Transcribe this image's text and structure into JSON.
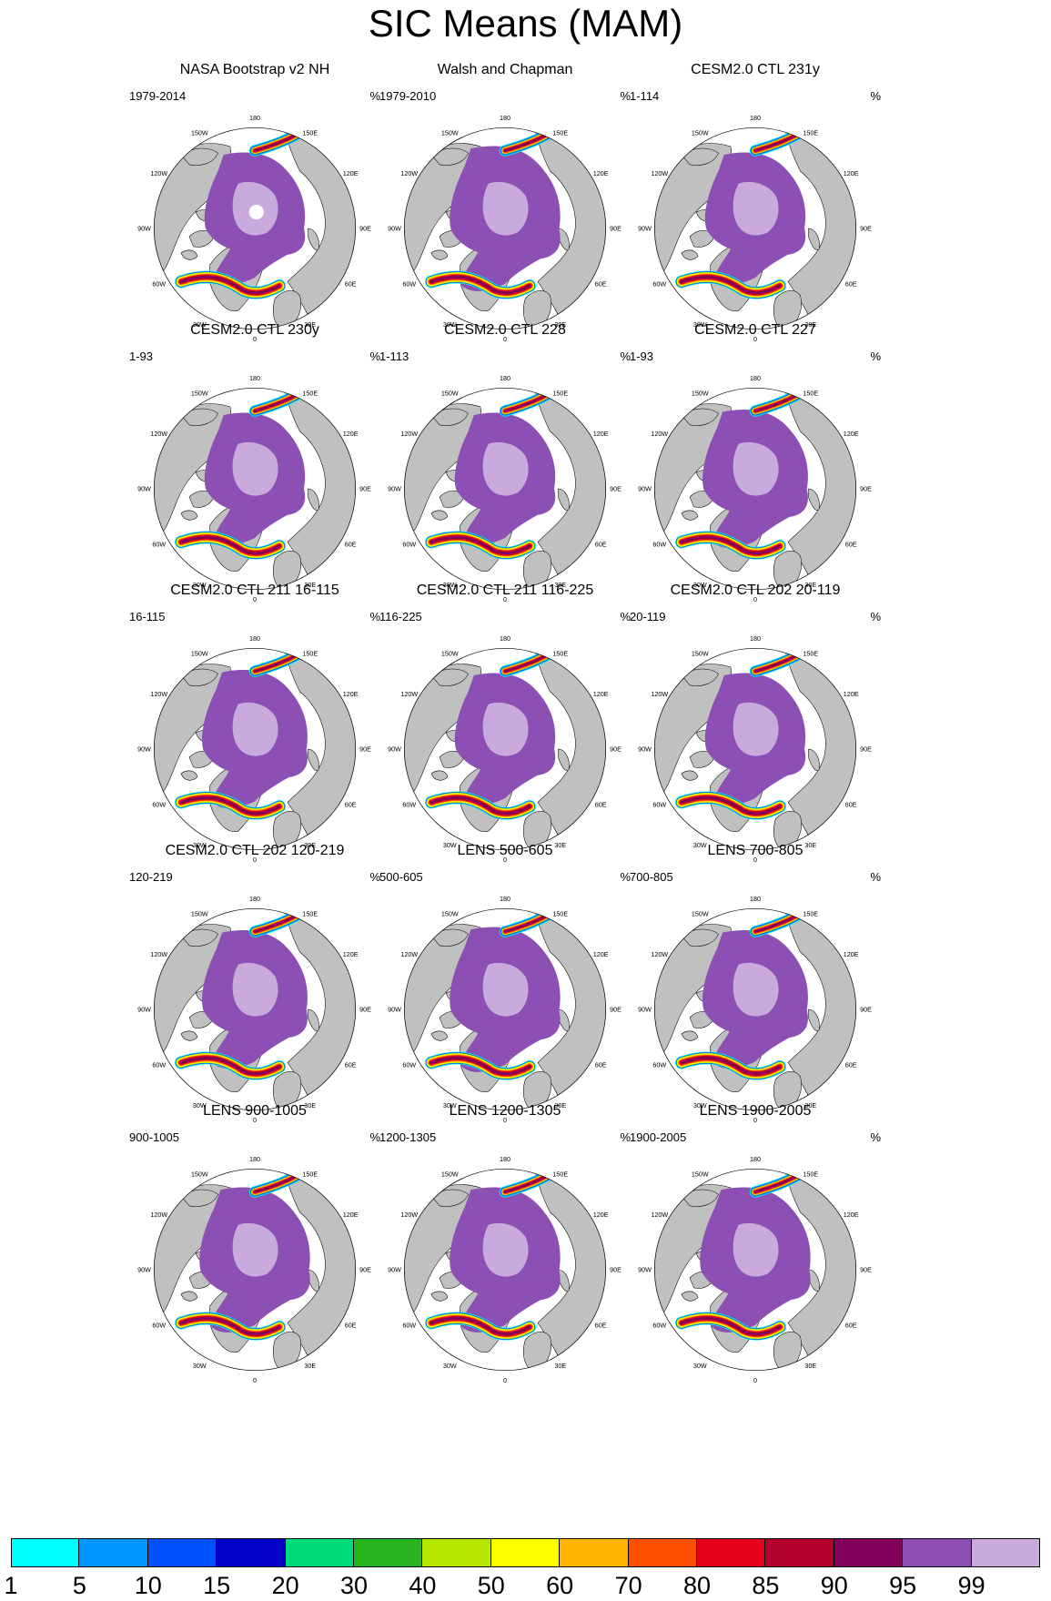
{
  "title": "SIC Means (MAM)",
  "unit": "%",
  "longitude_labels": [
    "180",
    "150E",
    "120E",
    "90E",
    "60E",
    "30E",
    "0",
    "30W",
    "60W",
    "90W",
    "120W",
    "150W"
  ],
  "panels": [
    {
      "title": "NASA Bootstrap v2 NH",
      "period": "1979-2014",
      "pole_hole": true,
      "extent": 1.0
    },
    {
      "title": "Walsh and Chapman",
      "period": "1979-2010",
      "pole_hole": false,
      "extent": 1.1
    },
    {
      "title": "CESM2.0 CTL 231y",
      "period": "1-114",
      "pole_hole": false,
      "extent": 1.0
    },
    {
      "title": "CESM2.0 CTL 230y",
      "period": "1-93",
      "pole_hole": false,
      "extent": 1.0
    },
    {
      "title": "CESM2.0 CTL 228",
      "period": "1-113",
      "pole_hole": false,
      "extent": 1.0
    },
    {
      "title": "CESM2.0 CTL 227",
      "period": "1-93",
      "pole_hole": false,
      "extent": 1.05
    },
    {
      "title": "CESM2.0 CTL 211 16-115",
      "period": "16-115",
      "pole_hole": false,
      "extent": 1.05
    },
    {
      "title": "CESM2.0 CTL 211 116-225",
      "period": "116-225",
      "pole_hole": false,
      "extent": 1.0
    },
    {
      "title": "CESM2.0 CTL 202 20-119",
      "period": "20-119",
      "pole_hole": false,
      "extent": 1.0
    },
    {
      "title": "CESM2.0 CTL 202 120-219",
      "period": "120-219",
      "pole_hole": false,
      "extent": 1.05
    },
    {
      "title": "LENS 500-605",
      "period": "500-605",
      "pole_hole": false,
      "extent": 1.1
    },
    {
      "title": "LENS 700-805",
      "period": "700-805",
      "pole_hole": false,
      "extent": 1.05
    },
    {
      "title": "LENS 900-1005",
      "period": "900-1005",
      "pole_hole": false,
      "extent": 1.1
    },
    {
      "title": "LENS 1200-1305",
      "period": "1200-1305",
      "pole_hole": false,
      "extent": 1.1
    },
    {
      "title": "LENS 1900-2005",
      "period": "1900-2005",
      "pole_hole": false,
      "extent": 1.1
    }
  ],
  "colorbar": {
    "labels": [
      "1",
      "5",
      "10",
      "15",
      "20",
      "30",
      "40",
      "50",
      "60",
      "70",
      "80",
      "85",
      "90",
      "95",
      "99"
    ],
    "colors": [
      "#00ffff",
      "#0096ff",
      "#0050ff",
      "#0000c8",
      "#00dc78",
      "#28b41e",
      "#b4e600",
      "#ffff00",
      "#ffb400",
      "#ff5000",
      "#e6001e",
      "#b4002d",
      "#82005a",
      "#8c50b4",
      "#c8aadc"
    ]
  },
  "land_color": "#c0c0c0"
}
